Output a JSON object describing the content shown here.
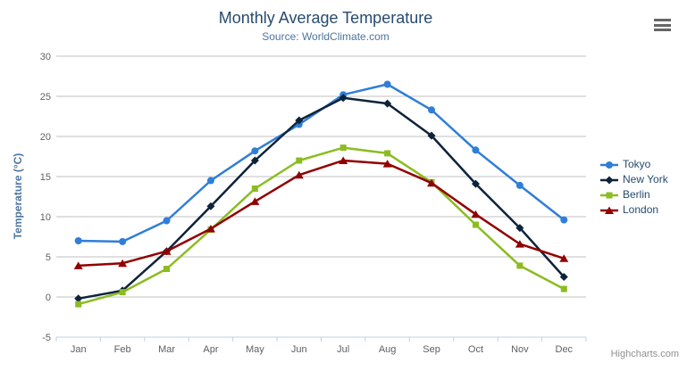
{
  "chart_data": {
    "type": "line",
    "title": "Monthly Average Temperature",
    "subtitle": "Source: WorldClimate.com",
    "ylabel": "Temperature (°C)",
    "xlabel": "",
    "ylim": [
      -5,
      30
    ],
    "ytick_step": 5,
    "grid": true,
    "legend_position": "right",
    "categories": [
      "Jan",
      "Feb",
      "Mar",
      "Apr",
      "May",
      "Jun",
      "Jul",
      "Aug",
      "Sep",
      "Oct",
      "Nov",
      "Dec"
    ],
    "series": [
      {
        "name": "Tokyo",
        "color": "#2f7ed8",
        "marker": "circle",
        "values": [
          7.0,
          6.9,
          9.5,
          14.5,
          18.2,
          21.5,
          25.2,
          26.5,
          23.3,
          18.3,
          13.9,
          9.6
        ]
      },
      {
        "name": "New York",
        "color": "#0d233a",
        "marker": "diamond",
        "values": [
          -0.2,
          0.8,
          5.7,
          11.3,
          17.0,
          22.0,
          24.8,
          24.1,
          20.1,
          14.1,
          8.6,
          2.5
        ]
      },
      {
        "name": "Berlin",
        "color": "#8bbc21",
        "marker": "square",
        "values": [
          -0.9,
          0.6,
          3.5,
          8.4,
          13.5,
          17.0,
          18.6,
          17.9,
          14.3,
          9.0,
          3.9,
          1.0
        ]
      },
      {
        "name": "London",
        "color": "#910000",
        "marker": "triangle",
        "values": [
          3.9,
          4.2,
          5.7,
          8.5,
          11.9,
          15.2,
          17.0,
          16.6,
          14.2,
          10.3,
          6.6,
          4.8
        ]
      }
    ]
  },
  "credits": "Highcharts.com",
  "menu": {
    "icon": "hamburger-icon"
  },
  "colors": {
    "title": "#274b6d",
    "subtitle": "#4d759e",
    "axis_title": "#4d759e",
    "tick_label": "#606060",
    "gridline": "#c0c0c0",
    "axis_line": "#c0d0e0",
    "legend_text": "#274b6d",
    "credits": "#909090",
    "menu_icon": "#666666",
    "background": "#ffffff"
  }
}
